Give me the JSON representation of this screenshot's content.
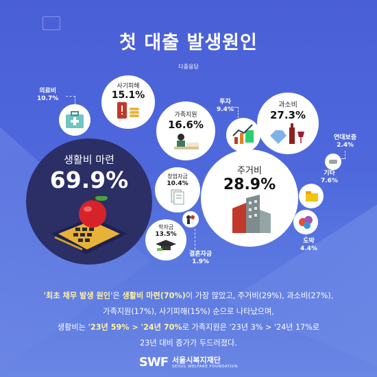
{
  "title": "첫 대출 발생원인",
  "subtitle": "다중응답",
  "chart_data": {
    "type": "bubble",
    "title": "첫 대출 발생원인",
    "subtitle": "다중응답",
    "unit": "%",
    "categories": [
      "생활비 마련",
      "주거비",
      "과소비",
      "가족지원",
      "사기피해",
      "학자금",
      "창업자금",
      "의료비",
      "투자",
      "기타",
      "도박",
      "연대보증",
      "결혼자금"
    ],
    "values": [
      69.9,
      28.9,
      27.3,
      16.6,
      15.1,
      13.5,
      10.4,
      10.7,
      9.4,
      7.6,
      4.4,
      2.4,
      1.9
    ],
    "value_labels": [
      "69.9%",
      "28.9%",
      "27.3%",
      "16.6%",
      "15.1%",
      "13.5%",
      "10.4%",
      "10.7%",
      "9.4%",
      "7.6%",
      "4.4%",
      "2.4%",
      "1.9%"
    ]
  },
  "description": {
    "line1_part1": "'최초 채무 발생 원인'",
    "line1_part2": "은 ",
    "line1_part3": "생활비 마련(70%)",
    "line1_part4": "이 가장 많았고, 주거비(29%), 과소비(27%),",
    "line2": "가족지원(17%), 사기피해(15%) 순으로 나타났으며,",
    "line3_part1": "생활비는 ",
    "line3_part2": "'23년 59% > '24년 70%",
    "line3_part3": "로 가족지원은 '23년 3% > '24년 17%로",
    "line4": "23년 대비 증가가 두드러졌다."
  },
  "footer": {
    "logo": "SWF",
    "org_name": "서울시복지재단",
    "org_name_en": "SEOUL WELFARE FOUNDATION"
  },
  "colors": {
    "background": "#4e68dc",
    "big_circle": "#2b2f66",
    "highlight_text": "#fff3a0"
  }
}
